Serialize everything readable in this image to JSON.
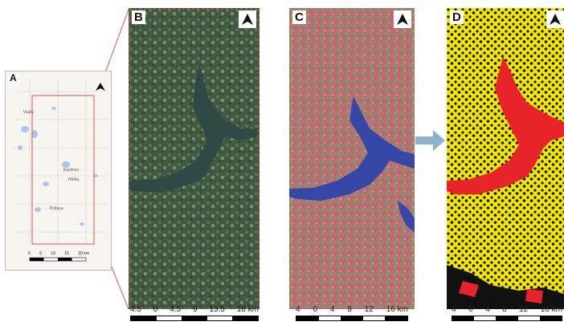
{
  "panels": {
    "a": {
      "letter": "A",
      "scale_ticks": [
        "0",
        "5",
        "10",
        "15",
        "20 km"
      ],
      "place_labels": [
        "Kasimov",
        "Hohla",
        "Vasily",
        "Poltava"
      ]
    },
    "b": {
      "letter": "B",
      "scale_ticks": [
        "4.5",
        "0",
        "4.5",
        "9",
        "13.5",
        "18 km"
      ]
    },
    "c": {
      "letter": "C",
      "scale_ticks": [
        "4",
        "0",
        "4",
        "8",
        "12",
        "16 km"
      ]
    },
    "d": {
      "letter": "D",
      "scale_ticks": [
        "4",
        "0",
        "4",
        "8",
        "12",
        "16 km"
      ]
    }
  },
  "icons": {
    "north": "north-arrow-icon",
    "flow": "right-arrow-icon"
  },
  "colors": {
    "water_rgb": "#2f4a45",
    "water_classified": "#3548a8",
    "water_binary": "#e8232a",
    "binary_land": "#f0e600",
    "extent_outline": "#e05050",
    "flow_arrow": "#8fb3cc"
  }
}
